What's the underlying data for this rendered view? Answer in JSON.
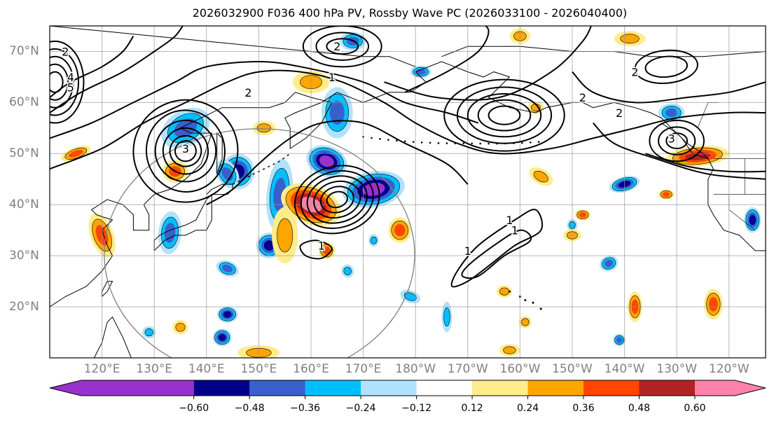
{
  "chart_data": {
    "type": "heatmap",
    "title": "2026032900 F036 400 hPa PV, Rossby Wave PC (2026033100 - 2026040400)",
    "init_time": "2026032900",
    "forecast_hour": "F036",
    "level": "400 hPa",
    "contour_field": "PV",
    "shaded_field": "Rossby Wave PC",
    "valid_window": "2026033100 - 2026040400",
    "projection": "PlateCarree",
    "lon_range_deg_east": [
      110,
      247
    ],
    "lat_range": [
      10,
      75
    ],
    "grid": true,
    "x_ticks": [
      "120°E",
      "130°E",
      "140°E",
      "150°E",
      "160°E",
      "170°E",
      "180°W",
      "170°W",
      "160°W",
      "150°W",
      "140°W",
      "130°W",
      "120°W"
    ],
    "x_tick_values": [
      120,
      130,
      140,
      150,
      160,
      170,
      180,
      190,
      200,
      210,
      220,
      230,
      240
    ],
    "y_ticks": [
      "70°N",
      "60°N",
      "50°N",
      "40°N",
      "30°N",
      "20°N"
    ],
    "y_tick_values": [
      70,
      60,
      50,
      40,
      30,
      20
    ],
    "colorbar": {
      "orientation": "horizontal",
      "extend": "both",
      "levels": [
        -0.6,
        -0.48,
        -0.36,
        -0.24,
        -0.12,
        0.12,
        0.24,
        0.36,
        0.48,
        0.6
      ],
      "tick_labels": [
        "−0.60",
        "−0.48",
        "−0.36",
        "−0.24",
        "−0.12",
        "0.12",
        "0.24",
        "0.36",
        "0.48",
        "0.60"
      ],
      "colors": [
        "#9932cc",
        "#00008b",
        "#3a5fcd",
        "#00bfff",
        "#b0e2ff",
        "#ffffff",
        "#ffec8b",
        "#ffa500",
        "#ff4500",
        "#b22222",
        "#ff82ab"
      ]
    },
    "pv_contour_labels": [
      {
        "value": "1",
        "lon": 162,
        "lat": 32
      },
      {
        "value": "1",
        "lon": 164,
        "lat": 65
      },
      {
        "value": "1",
        "lon": 198,
        "lat": 37
      },
      {
        "value": "1",
        "lon": 199,
        "lat": 35
      },
      {
        "value": "1",
        "lon": 190,
        "lat": 31
      },
      {
        "value": "2",
        "lon": 165,
        "lat": 71
      },
      {
        "value": "2",
        "lon": 148,
        "lat": 62
      },
      {
        "value": "2",
        "lon": 212,
        "lat": 61
      },
      {
        "value": "2",
        "lon": 219,
        "lat": 58
      },
      {
        "value": "2",
        "lon": 222,
        "lat": 66
      },
      {
        "value": "2",
        "lon": 113,
        "lat": 70
      },
      {
        "value": "3",
        "lon": 136,
        "lat": 51
      },
      {
        "value": "3",
        "lon": 229,
        "lat": 53
      },
      {
        "value": "4",
        "lon": 114,
        "lat": 65
      },
      {
        "value": "5",
        "lon": 114,
        "lat": 63
      }
    ],
    "anomaly_features": [
      {
        "sign": "positive",
        "max_bin": "0.60",
        "lon": 163,
        "lat": 40,
        "label": "strong ridge anomaly east of Japan"
      },
      {
        "sign": "negative",
        "max_bin": "-0.60",
        "lon": 172,
        "lat": 43,
        "label": "trough anomaly NE of ridge"
      },
      {
        "sign": "negative",
        "max_bin": "-0.60",
        "lon": 162,
        "lat": 48,
        "label": "trough anomaly near Kurils"
      },
      {
        "sign": "negative",
        "max_bin": "-0.48",
        "lon": 146,
        "lat": 47,
        "label": "trough anomaly Sea of Okhotsk"
      },
      {
        "sign": "positive",
        "max_bin": "0.36",
        "lon": 234,
        "lat": 50,
        "label": "ridge anomaly Pacific NW coast"
      },
      {
        "sign": "positive",
        "max_bin": "0.36",
        "lon": 120,
        "lat": 33,
        "label": "ridge anomaly eastern China"
      },
      {
        "sign": "negative",
        "max_bin": "-0.48",
        "lon": 133,
        "lat": 33,
        "label": "trough anomaly Korea/Japan"
      }
    ],
    "reference_circle": {
      "center_lon": 150,
      "center_lat": 30,
      "radius_deg": 30
    }
  }
}
